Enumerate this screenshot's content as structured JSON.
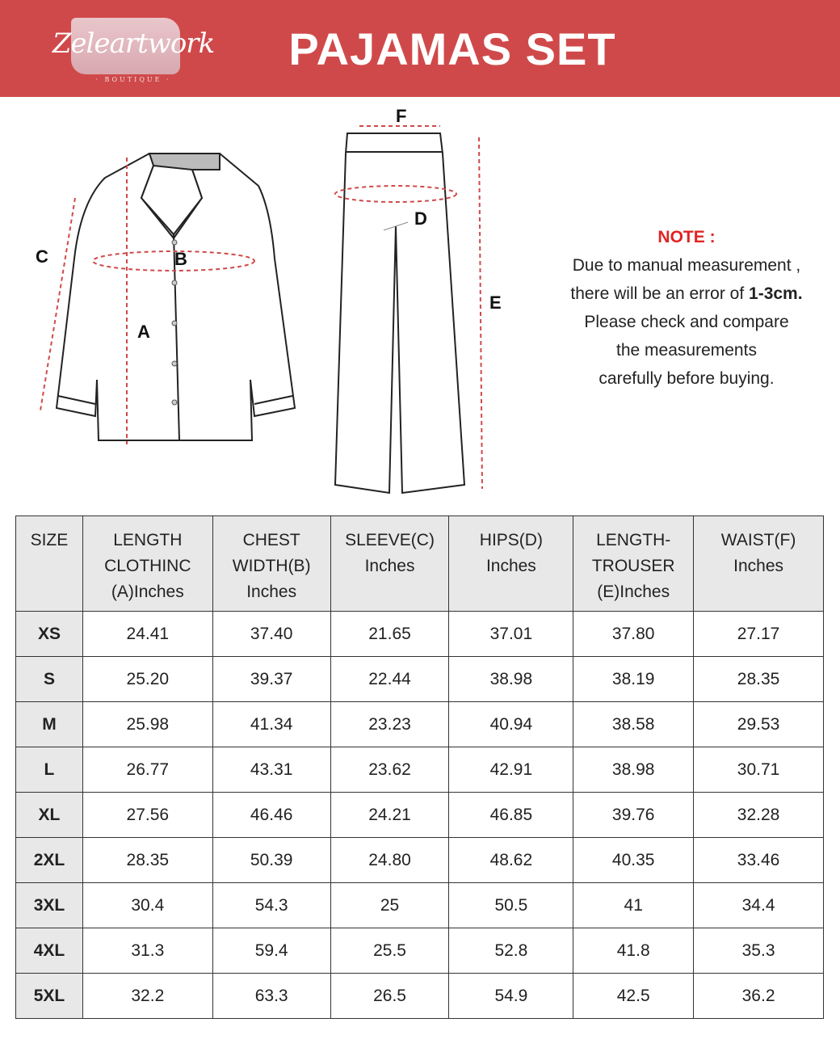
{
  "header": {
    "brand": "Zeleartwork",
    "brand_sub": "· BOUTIQUE ·",
    "title": "PAJAMAS SET"
  },
  "diagram": {
    "labels": {
      "a": "A",
      "b": "B",
      "c": "C",
      "d": "D",
      "e": "E",
      "f": "F"
    },
    "accent_color": "#d0494a"
  },
  "note": {
    "title": "NOTE :",
    "line1": "Due to manual measurement ,",
    "line2_pre": "there will be an error of ",
    "line2_bold": "1-3cm.",
    "line3": "Please check and compare",
    "line4": "the measurements",
    "line5": "carefully before buying."
  },
  "table": {
    "headers": [
      [
        "SIZE"
      ],
      [
        "LENGTH",
        "CLOTHINC",
        "(A)Inches"
      ],
      [
        "CHEST",
        "WIDTH(B)",
        "Inches"
      ],
      [
        "SLEEVE(C)",
        "Inches"
      ],
      [
        "HIPS(D)",
        "Inches"
      ],
      [
        "LENGTH-",
        "TROUSER",
        "(E)Inches"
      ],
      [
        "WAIST(F)",
        "Inches"
      ]
    ],
    "rows": [
      [
        "XS",
        "24.41",
        "37.40",
        "21.65",
        "37.01",
        "37.80",
        "27.17"
      ],
      [
        "S",
        "25.20",
        "39.37",
        "22.44",
        "38.98",
        "38.19",
        "28.35"
      ],
      [
        "M",
        "25.98",
        "41.34",
        "23.23",
        "40.94",
        "38.58",
        "29.53"
      ],
      [
        "L",
        "26.77",
        "43.31",
        "23.62",
        "42.91",
        "38.98",
        "30.71"
      ],
      [
        "XL",
        "27.56",
        "46.46",
        "24.21",
        "46.85",
        "39.76",
        "32.28"
      ],
      [
        "2XL",
        "28.35",
        "50.39",
        "24.80",
        "48.62",
        "40.35",
        "33.46"
      ],
      [
        "3XL",
        "30.4",
        "54.3",
        "25",
        "50.5",
        "41",
        "34.4"
      ],
      [
        "4XL",
        "31.3",
        "59.4",
        "25.5",
        "52.8",
        "41.8",
        "35.3"
      ],
      [
        "5XL",
        "32.2",
        "63.3",
        "26.5",
        "54.9",
        "42.5",
        "36.2"
      ]
    ]
  }
}
